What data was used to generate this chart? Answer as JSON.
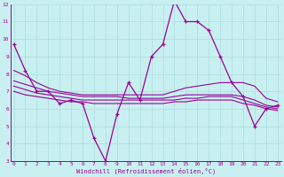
{
  "xlabel": "Windchill (Refroidissement éolien,°C)",
  "ylabel": "",
  "bg_color": "#c8f0f0",
  "line_color": "#990099",
  "grid_color": "#aadddd",
  "xmin": 0,
  "xmax": 23,
  "ymin": 3,
  "ymax": 12,
  "hours": [
    0,
    1,
    2,
    3,
    4,
    5,
    6,
    7,
    8,
    9,
    10,
    11,
    12,
    13,
    14,
    15,
    16,
    17,
    18,
    19,
    20,
    21,
    22,
    23
  ],
  "main_line": [
    9.7,
    8.2,
    7.0,
    7.0,
    6.3,
    6.5,
    6.3,
    4.3,
    3.0,
    5.7,
    7.5,
    6.5,
    9.0,
    9.7,
    12.2,
    11.0,
    11.0,
    10.5,
    9.0,
    7.5,
    6.7,
    5.0,
    6.0,
    6.2
  ],
  "flat_line1": [
    8.2,
    7.9,
    7.5,
    7.2,
    7.0,
    6.9,
    6.8,
    6.8,
    6.8,
    6.8,
    6.8,
    6.8,
    6.8,
    6.8,
    7.0,
    7.2,
    7.3,
    7.4,
    7.5,
    7.5,
    7.5,
    7.3,
    6.6,
    6.4
  ],
  "flat_line2": [
    7.6,
    7.4,
    7.2,
    7.0,
    6.9,
    6.8,
    6.7,
    6.7,
    6.7,
    6.7,
    6.6,
    6.6,
    6.6,
    6.6,
    6.7,
    6.8,
    6.8,
    6.8,
    6.8,
    6.8,
    6.7,
    6.5,
    6.2,
    6.1
  ],
  "flat_line3": [
    7.3,
    7.1,
    6.9,
    6.8,
    6.7,
    6.6,
    6.5,
    6.5,
    6.5,
    6.5,
    6.5,
    6.5,
    6.5,
    6.5,
    6.5,
    6.6,
    6.6,
    6.7,
    6.7,
    6.7,
    6.5,
    6.3,
    6.1,
    6.0
  ],
  "flat_line4": [
    7.0,
    6.8,
    6.7,
    6.6,
    6.5,
    6.4,
    6.4,
    6.3,
    6.3,
    6.3,
    6.3,
    6.3,
    6.3,
    6.3,
    6.4,
    6.4,
    6.5,
    6.5,
    6.5,
    6.5,
    6.3,
    6.2,
    6.0,
    5.9
  ]
}
